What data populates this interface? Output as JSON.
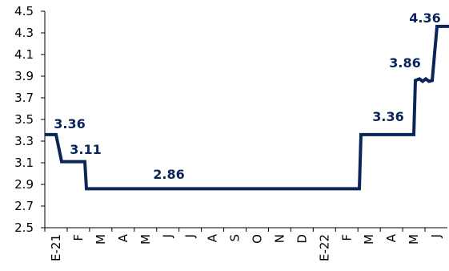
{
  "chart_data": {
    "type": "line",
    "title": "",
    "xlabel": "",
    "ylabel": "",
    "ylim": [
      2.5,
      4.5
    ],
    "yticks": [
      "2.5",
      "2.7",
      "2.9",
      "3.1",
      "3.3",
      "3.5",
      "3.7",
      "3.9",
      "4.1",
      "4.3",
      "4.5"
    ],
    "xtick_labels": [
      "E-21",
      "F",
      "M",
      "A",
      "M",
      "J",
      "J",
      "A",
      "S",
      "O",
      "N",
      "D",
      "E-22",
      "F",
      "M",
      "A",
      "M",
      "J"
    ],
    "grid": false,
    "legend": "none",
    "series": [
      {
        "color": "#0b2559",
        "points": [
          {
            "x": "E-21",
            "y": 3.36
          },
          {
            "x": "E-21 late",
            "y": 3.36
          },
          {
            "x": "F",
            "y": 3.11
          },
          {
            "x": "M",
            "y": 3.11
          },
          {
            "x": "M",
            "y": 2.86
          },
          {
            "x": "M-22",
            "y": 2.86
          },
          {
            "x": "A-22",
            "y": 2.86
          },
          {
            "x": "A-22",
            "y": 3.36
          },
          {
            "x": "M-22",
            "y": 3.36
          },
          {
            "x": "J-22",
            "y": 3.36
          },
          {
            "x": "J-22",
            "y": 3.86
          },
          {
            "x": "J-22 mid",
            "y": 3.86
          },
          {
            "x": "J-22 end",
            "y": 4.36
          }
        ]
      }
    ],
    "annotations": [
      "3.36",
      "3.11",
      "2.86",
      "3.36",
      "3.86",
      "4.36"
    ]
  }
}
